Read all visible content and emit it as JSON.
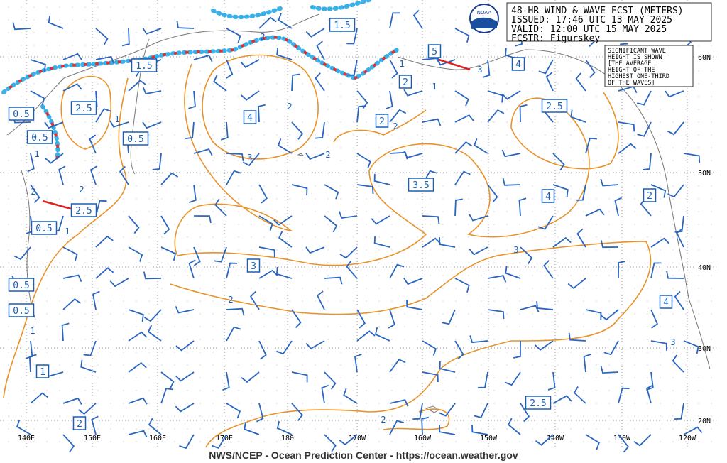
{
  "header": {
    "title": "48-HR WIND & WAVE FCST (METERS)",
    "issued": "ISSUED: 17:46 UTC 13 MAY 2025",
    "valid": "VALID: 12:00 UTC 15 MAY 2025",
    "forecaster": "FCSTR: Figurskey"
  },
  "note": [
    "SIGNIFICANT WAVE",
    "HEIGHT IS SHOWN",
    "[THE AVERAGE",
    "HEIGHT OF THE",
    "HIGHEST ONE-THIRD",
    "OF THE WAVES]"
  ],
  "longitudes": [
    "140E",
    "150E",
    "160E",
    "170E",
    "180",
    "170W",
    "160W",
    "150W",
    "140W",
    "130W",
    "120W"
  ],
  "latitudes": [
    "60N",
    "50N",
    "40N",
    "30N",
    "20N"
  ],
  "boxed_labels": [
    "1.5",
    "1.5",
    "2.5",
    "0.5",
    "0.5",
    "0.5",
    "2.5",
    "0.5",
    "0.5",
    "0.5",
    "1",
    "2",
    "5",
    "2",
    "4",
    "2.5",
    "4",
    "2",
    "3.5",
    "4",
    "2",
    "3",
    "4",
    "2.5"
  ],
  "contour_labels": [
    "2",
    "1",
    "1",
    "1",
    "2",
    "2",
    "1",
    "2",
    "3",
    "2",
    "2",
    "3",
    "3",
    "2",
    "1",
    "2",
    "3",
    "1"
  ],
  "logo": "NOAA",
  "footer": "NWS/NCEP - Ocean Prediction Center - https://ocean.weather.gov"
}
